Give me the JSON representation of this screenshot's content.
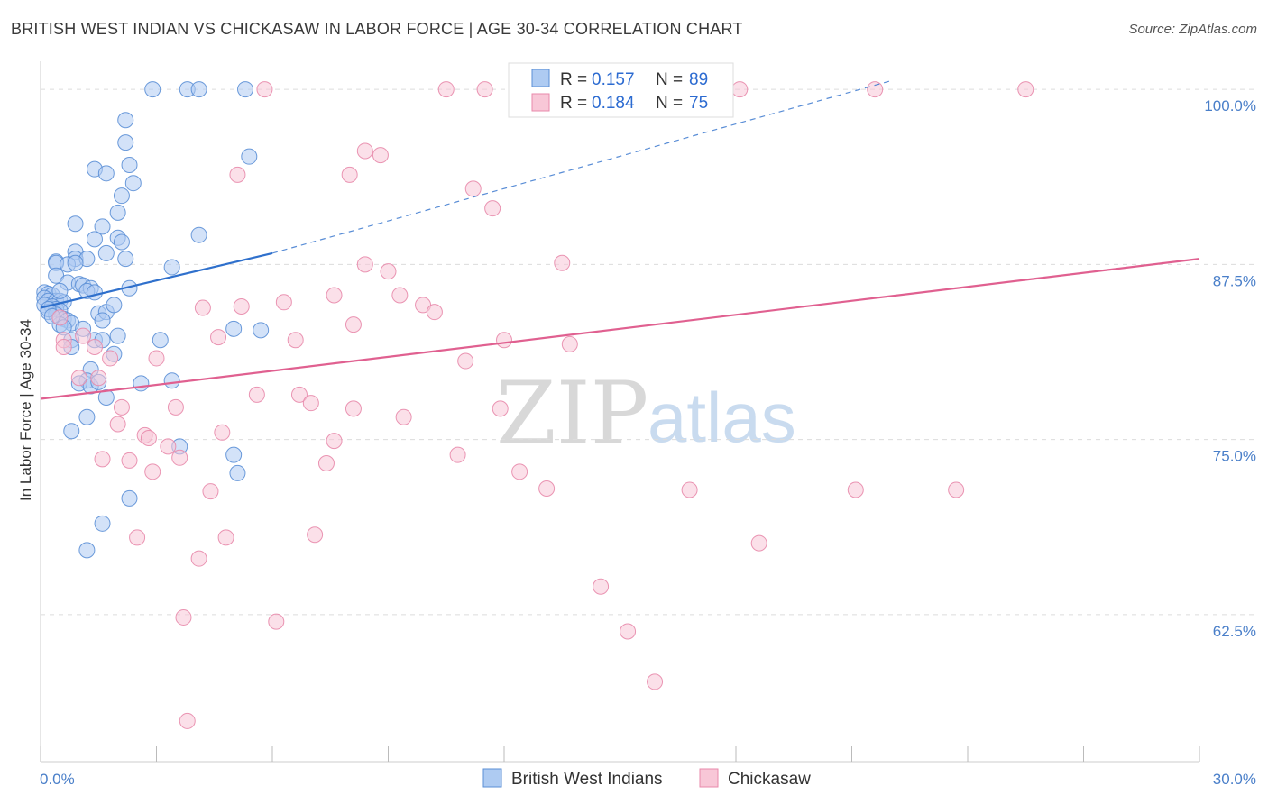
{
  "title": "BRITISH WEST INDIAN VS CHICKASAW IN LABOR FORCE | AGE 30-34 CORRELATION CHART",
  "source": "Source: ZipAtlas.com",
  "watermark": {
    "zip": "ZIP",
    "atlas": "atlas"
  },
  "chart_data": {
    "type": "scatter",
    "xlabel": "",
    "ylabel": "In Labor Force | Age 30-34",
    "xlim": [
      0,
      30
    ],
    "ylim": [
      52.0,
      102.0
    ],
    "x_tick_labels": {
      "min": "0.0%",
      "max": "30.0%"
    },
    "y_ticks": [
      62.5,
      75.0,
      87.5,
      100.0
    ],
    "y_tick_labels": [
      "62.5%",
      "75.0%",
      "87.5%",
      "100.0%"
    ],
    "legend": {
      "placement": "top-center",
      "rows": [
        {
          "r_label": "R =",
          "r_value": "0.157",
          "n_label": "N =",
          "n_value": "89"
        },
        {
          "r_label": "R =",
          "r_value": "0.184",
          "n_label": "N =",
          "n_value": "75"
        }
      ]
    },
    "series": [
      {
        "name": "British West Indians",
        "color": "#7aa8e8",
        "stroke": "#5b8fd6",
        "fill": "#aecbf2",
        "trend": {
          "x0": 0.0,
          "y0": 84.4,
          "x1": 6.0,
          "y1": 88.3,
          "dash_to_x": 22.0,
          "dash_to_y": 100.6,
          "color": "#2f70cc"
        },
        "points": [
          [
            2.9,
            100.0
          ],
          [
            3.8,
            100.0
          ],
          [
            4.1,
            100.0
          ],
          [
            5.3,
            100.0
          ],
          [
            2.2,
            97.8
          ],
          [
            2.2,
            96.2
          ],
          [
            5.4,
            95.2
          ],
          [
            1.4,
            94.3
          ],
          [
            1.7,
            94.0
          ],
          [
            2.3,
            94.6
          ],
          [
            2.4,
            93.3
          ],
          [
            2.1,
            92.4
          ],
          [
            2.0,
            91.2
          ],
          [
            0.9,
            90.4
          ],
          [
            1.6,
            90.2
          ],
          [
            4.1,
            89.6
          ],
          [
            1.4,
            89.3
          ],
          [
            2.0,
            89.4
          ],
          [
            2.1,
            89.1
          ],
          [
            0.9,
            88.4
          ],
          [
            1.7,
            88.3
          ],
          [
            0.9,
            87.9
          ],
          [
            1.2,
            87.9
          ],
          [
            2.2,
            87.9
          ],
          [
            0.4,
            87.7
          ],
          [
            0.4,
            87.6
          ],
          [
            0.7,
            87.5
          ],
          [
            0.9,
            87.6
          ],
          [
            3.4,
            87.3
          ],
          [
            0.4,
            86.7
          ],
          [
            0.7,
            86.2
          ],
          [
            1.0,
            86.1
          ],
          [
            1.1,
            86.0
          ],
          [
            1.3,
            85.8
          ],
          [
            2.3,
            85.8
          ],
          [
            1.2,
            85.6
          ],
          [
            1.4,
            85.5
          ],
          [
            0.1,
            85.5
          ],
          [
            0.2,
            85.4
          ],
          [
            0.3,
            85.3
          ],
          [
            0.1,
            85.1
          ],
          [
            0.2,
            84.9
          ],
          [
            0.4,
            84.9
          ],
          [
            0.5,
            84.9
          ],
          [
            0.6,
            84.8
          ],
          [
            0.1,
            84.6
          ],
          [
            0.3,
            84.5
          ],
          [
            0.4,
            84.3
          ],
          [
            0.5,
            84.2
          ],
          [
            0.2,
            84.1
          ],
          [
            0.4,
            83.9
          ],
          [
            1.5,
            84.0
          ],
          [
            1.7,
            84.1
          ],
          [
            0.6,
            83.6
          ],
          [
            0.7,
            83.5
          ],
          [
            0.8,
            83.3
          ],
          [
            1.6,
            83.5
          ],
          [
            0.5,
            83.2
          ],
          [
            0.6,
            83.0
          ],
          [
            1.1,
            82.9
          ],
          [
            1.9,
            84.6
          ],
          [
            5.7,
            82.8
          ],
          [
            5.0,
            82.9
          ],
          [
            0.8,
            82.1
          ],
          [
            1.4,
            82.1
          ],
          [
            1.6,
            82.1
          ],
          [
            2.0,
            82.4
          ],
          [
            3.1,
            82.1
          ],
          [
            0.8,
            81.6
          ],
          [
            1.9,
            81.1
          ],
          [
            1.3,
            80.0
          ],
          [
            1.2,
            79.2
          ],
          [
            1.0,
            79.0
          ],
          [
            1.3,
            78.8
          ],
          [
            1.5,
            79.1
          ],
          [
            3.4,
            79.2
          ],
          [
            2.6,
            79.0
          ],
          [
            1.7,
            78.0
          ],
          [
            1.2,
            76.6
          ],
          [
            0.8,
            75.6
          ],
          [
            3.6,
            74.5
          ],
          [
            5.0,
            73.9
          ],
          [
            5.1,
            72.6
          ],
          [
            2.3,
            70.8
          ],
          [
            1.6,
            69.0
          ],
          [
            1.2,
            67.1
          ],
          [
            0.2,
            84.3
          ],
          [
            0.3,
            83.8
          ],
          [
            0.5,
            85.6
          ]
        ]
      },
      {
        "name": "Chickasaw",
        "color": "#f2a5bf",
        "stroke": "#e88aab",
        "fill": "#f8c7d7",
        "trend": {
          "x0": 0.0,
          "y0": 77.9,
          "x1": 30.0,
          "y1": 87.9,
          "color": "#e06090"
        },
        "points": [
          [
            5.8,
            100.0
          ],
          [
            10.5,
            100.0
          ],
          [
            11.5,
            100.0
          ],
          [
            13.2,
            100.0
          ],
          [
            18.1,
            100.0
          ],
          [
            21.6,
            100.0
          ],
          [
            25.5,
            100.0
          ],
          [
            8.4,
            95.6
          ],
          [
            8.8,
            95.3
          ],
          [
            5.1,
            93.9
          ],
          [
            8.0,
            93.9
          ],
          [
            11.2,
            92.9
          ],
          [
            11.7,
            91.5
          ],
          [
            8.4,
            87.5
          ],
          [
            9.0,
            87.0
          ],
          [
            13.5,
            87.6
          ],
          [
            7.6,
            85.3
          ],
          [
            9.3,
            85.3
          ],
          [
            6.3,
            84.8
          ],
          [
            9.9,
            84.6
          ],
          [
            4.2,
            84.4
          ],
          [
            5.2,
            84.5
          ],
          [
            10.2,
            84.1
          ],
          [
            8.1,
            83.2
          ],
          [
            0.6,
            82.1
          ],
          [
            1.1,
            82.4
          ],
          [
            4.6,
            82.3
          ],
          [
            6.6,
            82.1
          ],
          [
            12.0,
            82.1
          ],
          [
            13.7,
            81.8
          ],
          [
            0.6,
            81.6
          ],
          [
            1.4,
            81.6
          ],
          [
            1.8,
            80.8
          ],
          [
            3.0,
            80.8
          ],
          [
            11.0,
            80.6
          ],
          [
            1.5,
            79.4
          ],
          [
            1.0,
            79.4
          ],
          [
            5.6,
            78.2
          ],
          [
            6.7,
            78.2
          ],
          [
            7.0,
            77.6
          ],
          [
            2.1,
            77.3
          ],
          [
            3.5,
            77.3
          ],
          [
            8.1,
            77.2
          ],
          [
            11.9,
            77.2
          ],
          [
            9.4,
            76.6
          ],
          [
            2.0,
            76.1
          ],
          [
            4.7,
            75.5
          ],
          [
            2.7,
            75.3
          ],
          [
            3.3,
            74.5
          ],
          [
            7.6,
            74.9
          ],
          [
            1.6,
            73.6
          ],
          [
            2.3,
            73.5
          ],
          [
            7.4,
            73.3
          ],
          [
            10.8,
            73.9
          ],
          [
            12.4,
            72.7
          ],
          [
            2.9,
            72.7
          ],
          [
            4.4,
            71.3
          ],
          [
            13.1,
            71.5
          ],
          [
            16.8,
            71.4
          ],
          [
            21.1,
            71.4
          ],
          [
            23.7,
            71.4
          ],
          [
            2.5,
            68.0
          ],
          [
            4.8,
            68.0
          ],
          [
            7.1,
            68.2
          ],
          [
            18.6,
            67.6
          ],
          [
            14.5,
            64.5
          ],
          [
            3.7,
            62.3
          ],
          [
            15.2,
            61.3
          ],
          [
            15.9,
            57.7
          ],
          [
            3.8,
            54.9
          ],
          [
            0.5,
            83.7
          ],
          [
            2.8,
            75.1
          ],
          [
            3.6,
            73.7
          ],
          [
            4.1,
            66.5
          ],
          [
            6.1,
            62.0
          ]
        ]
      }
    ]
  }
}
